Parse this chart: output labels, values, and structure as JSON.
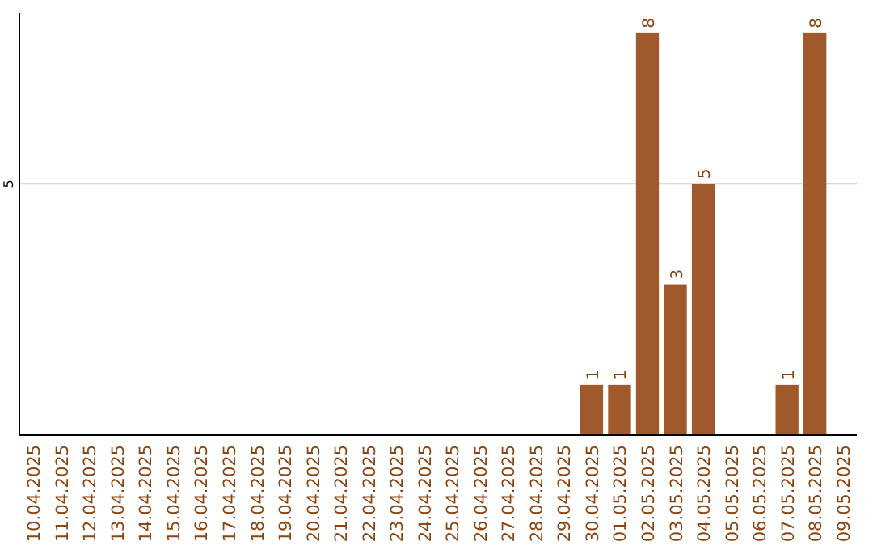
{
  "chart_data": {
    "type": "bar",
    "categories": [
      "10.04.2025",
      "11.04.2025",
      "12.04.2025",
      "13.04.2025",
      "14.04.2025",
      "15.04.2025",
      "16.04.2025",
      "17.04.2025",
      "18.04.2025",
      "19.04.2025",
      "20.04.2025",
      "21.04.2025",
      "22.04.2025",
      "23.04.2025",
      "24.04.2025",
      "25.04.2025",
      "26.04.2025",
      "27.04.2025",
      "28.04.2025",
      "29.04.2025",
      "30.04.2025",
      "01.05.2025",
      "02.05.2025",
      "03.05.2025",
      "04.05.2025",
      "05.05.2025",
      "06.05.2025",
      "07.05.2025",
      "08.05.2025",
      "09.05.2025"
    ],
    "values": [
      null,
      null,
      null,
      null,
      null,
      null,
      null,
      null,
      null,
      null,
      null,
      null,
      null,
      null,
      null,
      null,
      null,
      null,
      null,
      null,
      1,
      1,
      8,
      3,
      5,
      null,
      null,
      1,
      8,
      null
    ],
    "color": "#a0592a",
    "ylim": [
      0,
      8.4
    ],
    "yticks": [
      5
    ],
    "grid": "y",
    "data_labels": true
  }
}
